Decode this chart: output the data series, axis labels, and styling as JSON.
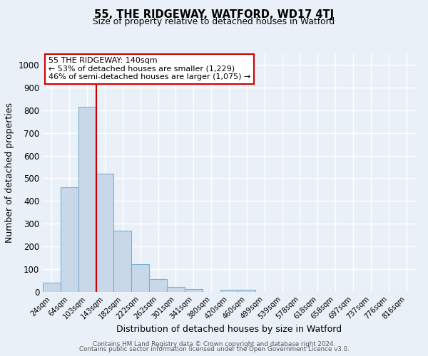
{
  "title": "55, THE RIDGEWAY, WATFORD, WD17 4TJ",
  "subtitle": "Size of property relative to detached houses in Watford",
  "xlabel": "Distribution of detached houses by size in Watford",
  "ylabel": "Number of detached properties",
  "bar_labels": [
    "24sqm",
    "64sqm",
    "103sqm",
    "143sqm",
    "182sqm",
    "222sqm",
    "262sqm",
    "301sqm",
    "341sqm",
    "380sqm",
    "420sqm",
    "460sqm",
    "499sqm",
    "539sqm",
    "578sqm",
    "618sqm",
    "658sqm",
    "697sqm",
    "737sqm",
    "776sqm",
    "816sqm"
  ],
  "bar_values": [
    42,
    460,
    815,
    520,
    270,
    123,
    57,
    22,
    12,
    0,
    10,
    8,
    0,
    0,
    0,
    0,
    0,
    0,
    0,
    0,
    0
  ],
  "bar_color": "#c8d8e8",
  "bar_edge_color": "#7bafd4",
  "vline_index": 2.5,
  "vline_color": "#cc0000",
  "annotation_text": "55 THE RIDGEWAY: 140sqm\n← 53% of detached houses are smaller (1,229)\n46% of semi-detached houses are larger (1,075) →",
  "annotation_box_color": "#ffffff",
  "annotation_box_edge_color": "#cc0000",
  "ylim": [
    0,
    1050
  ],
  "yticks": [
    0,
    100,
    200,
    300,
    400,
    500,
    600,
    700,
    800,
    900,
    1000
  ],
  "background_color": "#eaf0f8",
  "plot_bg_color": "#eaf0f8",
  "grid_color": "#ffffff",
  "footer_line1": "Contains HM Land Registry data © Crown copyright and database right 2024.",
  "footer_line2": "Contains public sector information licensed under the Open Government Licence v3.0."
}
